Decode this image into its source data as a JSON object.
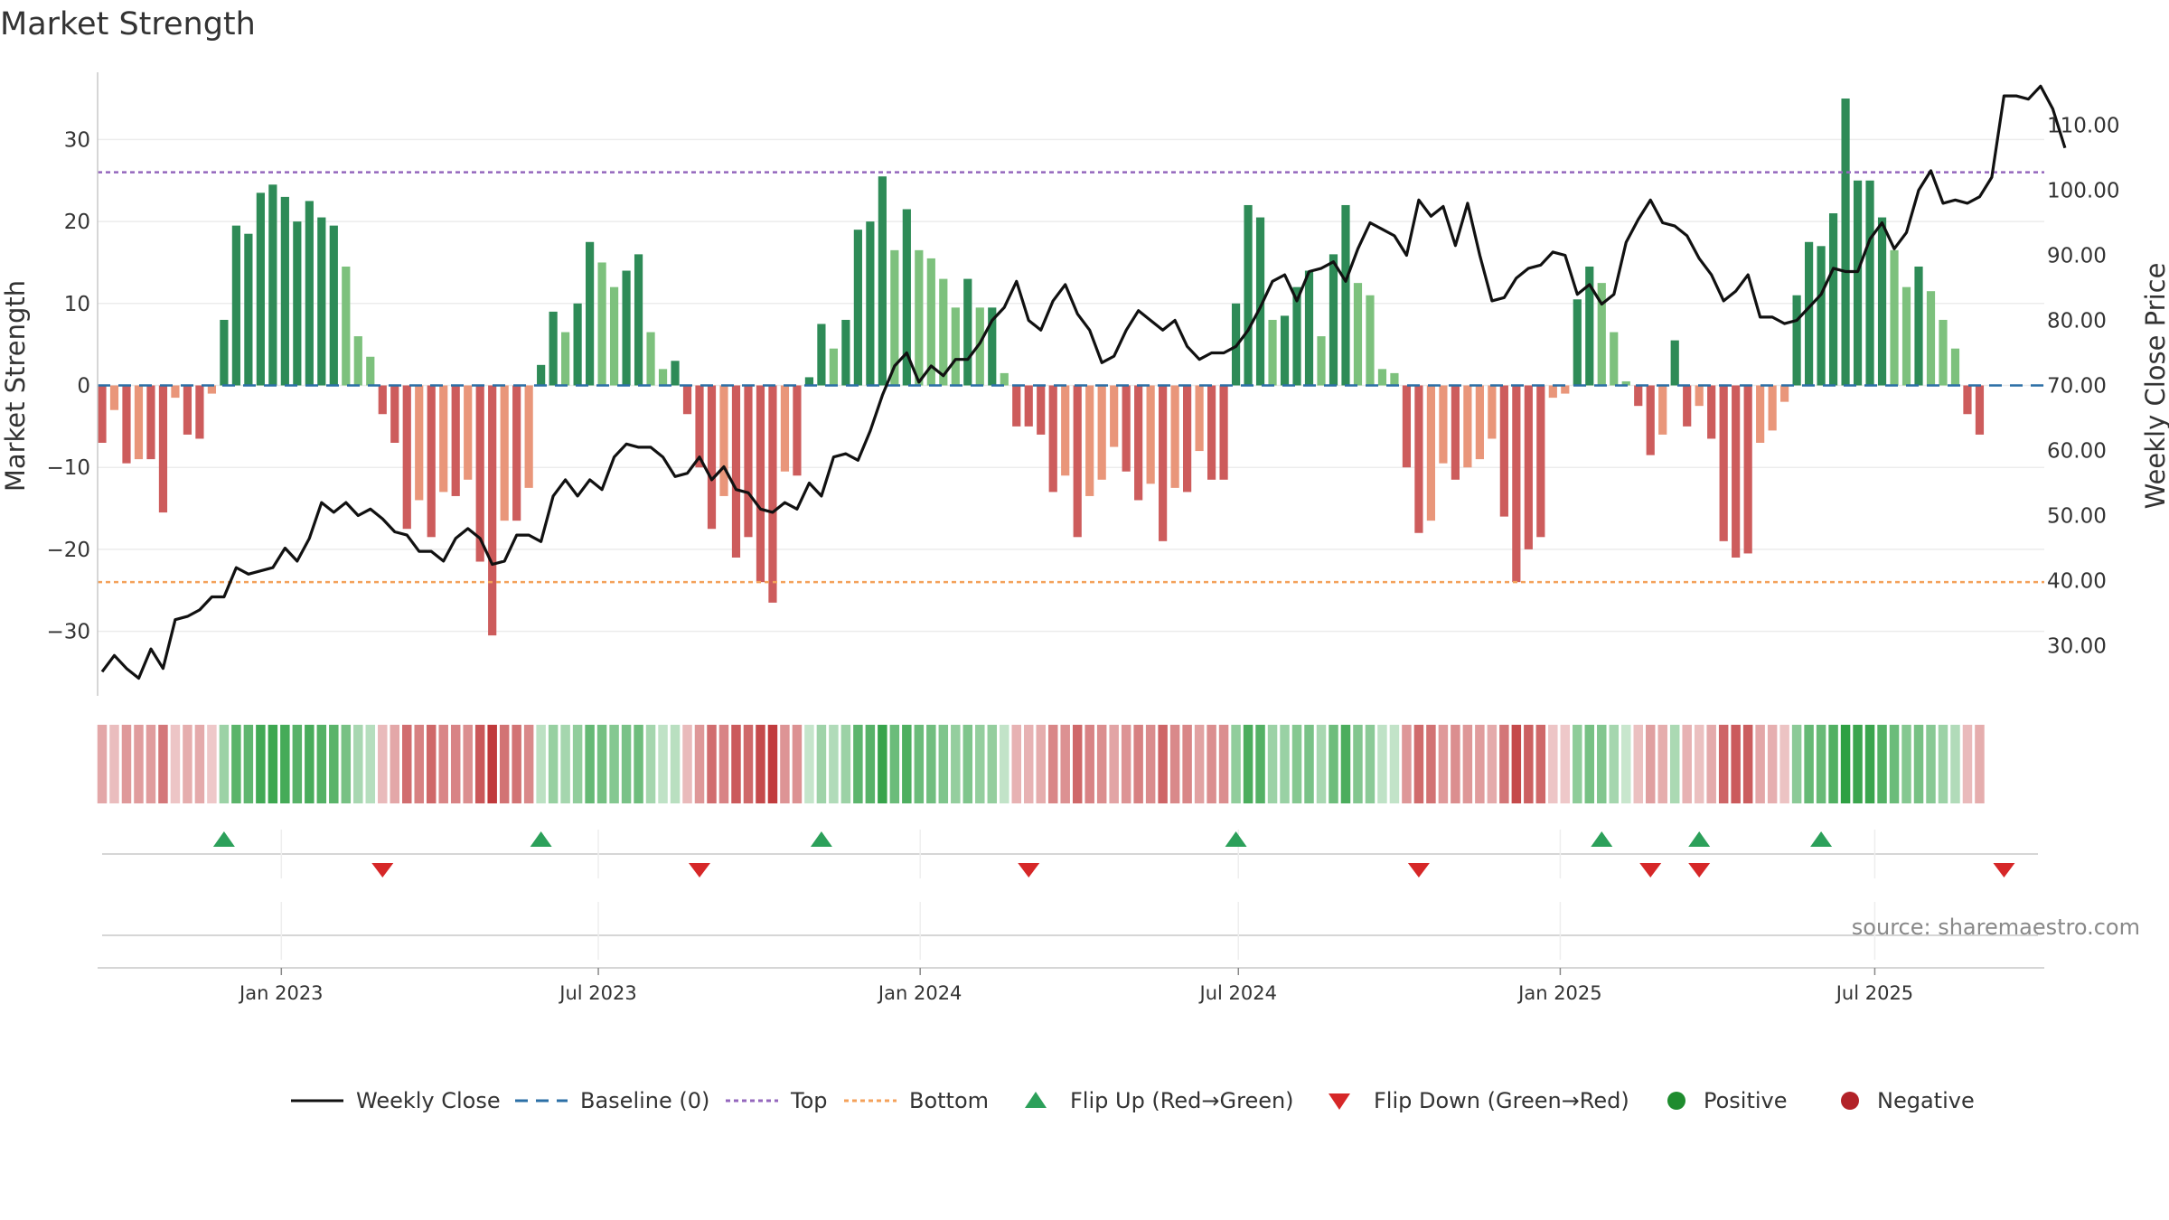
{
  "chart_data": {
    "type": "bar",
    "title": "Market Strength",
    "ylabel": "Market Strength",
    "y2label": "Weekly Close Price",
    "ylim": [
      -37.5,
      38
    ],
    "y2lim": [
      20.6,
      120.3
    ],
    "yticks": [
      30,
      20,
      10,
      0,
      -10,
      -20,
      -30
    ],
    "yticklabels": [
      "30",
      "20",
      "10",
      "0",
      "−10",
      "−20",
      "−30"
    ],
    "y2ticks": [
      110,
      100,
      90,
      80,
      70,
      60,
      50,
      40,
      30
    ],
    "y2ticklabels": [
      "110.00",
      "100.00",
      "90.00",
      "80.00",
      "70.00",
      "60.00",
      "50.00",
      "40.00",
      "30.00"
    ],
    "top_level": 26,
    "bottom_level": -24,
    "baseline": 0,
    "x_start_week": 0,
    "xticks": [
      {
        "label": "Jan 2023",
        "week": 14.7
      },
      {
        "label": "Jul 2023",
        "week": 40.7
      },
      {
        "label": "Jan 2024",
        "week": 67.1
      },
      {
        "label": "Jul 2024",
        "week": 93.2
      },
      {
        "label": "Jan 2025",
        "week": 119.6
      },
      {
        "label": "Jul 2025",
        "week": 145.4
      }
    ],
    "strength": [
      -7,
      -3,
      -9.5,
      -9,
      -9,
      -15.5,
      -1.5,
      -6,
      -6.5,
      -1,
      8,
      19.5,
      18.5,
      23.5,
      24.5,
      23,
      20,
      22.5,
      20.5,
      19.5,
      14.5,
      6,
      3.5,
      -3.5,
      -7,
      -17.5,
      -14,
      -18.5,
      -13,
      -13.5,
      -11.5,
      -21.5,
      -30.5,
      -16.5,
      -16.5,
      -12.5,
      2.5,
      9,
      6.5,
      10,
      17.5,
      15,
      12,
      14,
      16,
      6.5,
      2,
      3,
      -3.5,
      -10,
      -17.5,
      -13.5,
      -21,
      -18.5,
      -24,
      -26.5,
      -10.5,
      -11,
      1,
      7.5,
      4.5,
      8,
      19,
      20,
      25.5,
      16.5,
      21.5,
      16.5,
      15.5,
      13,
      9.5,
      13,
      9.5,
      9.5,
      1.5,
      -5,
      -5,
      -6,
      -13,
      -11,
      -18.5,
      -13.5,
      -11.5,
      -7.5,
      -10.5,
      -14,
      -12,
      -19,
      -12.5,
      -13,
      -8,
      -11.5,
      -11.5,
      10,
      22,
      20.5,
      8,
      8.5,
      12,
      14,
      6,
      16,
      22,
      12.5,
      11,
      2,
      1.5,
      -10,
      -18,
      -16.5,
      -9.5,
      -11.5,
      -10,
      -9,
      -6.5,
      -16,
      -24,
      -20,
      -18.5,
      -1.5,
      -1,
      10.5,
      14.5,
      12.5,
      6.5,
      0.5,
      -2.5,
      -8.5,
      -6,
      5.5,
      -5,
      -2.5,
      -6.5,
      -19,
      -21,
      -20.5,
      -7,
      -5.5,
      -2,
      11,
      17.5,
      17,
      21,
      35,
      25,
      25,
      20.5,
      16.5,
      12,
      14.5,
      11.5,
      8,
      4.5,
      -3.5,
      -6
    ],
    "price": [
      26,
      28.5,
      26.5,
      25,
      29.5,
      26.5,
      34,
      34.5,
      35.5,
      37.5,
      37.5,
      42,
      41,
      41.5,
      42,
      45,
      43,
      46.5,
      52,
      50.5,
      52,
      50,
      51,
      49.5,
      47.5,
      47,
      44.5,
      44.5,
      43,
      46.5,
      48,
      46.5,
      42.5,
      43,
      47,
      47,
      46,
      53,
      55.5,
      53,
      55.5,
      54,
      59,
      61,
      60.5,
      60.5,
      59,
      56,
      56.5,
      59,
      55.5,
      57.5,
      54,
      53.5,
      51,
      50.5,
      52,
      51,
      55,
      53,
      59,
      59.5,
      58.5,
      63,
      68.5,
      73,
      75,
      70.5,
      73,
      71.5,
      74,
      74,
      76.5,
      80,
      82,
      86,
      80,
      78.5,
      83,
      85.5,
      81,
      78.5,
      73.5,
      74.5,
      78.5,
      81.5,
      80,
      78.5,
      80,
      76,
      74,
      75,
      75,
      76,
      78.5,
      82,
      86,
      87,
      83,
      87.5,
      88,
      89,
      86,
      91,
      95,
      94,
      93,
      90,
      98.5,
      96,
      97.5,
      91.5,
      98,
      90,
      83,
      83.5,
      86.5,
      88,
      88.5,
      90.5,
      90,
      84,
      85.5,
      82.5,
      84,
      92,
      95.5,
      98.5,
      95,
      94.5,
      93,
      89.5,
      87,
      83,
      84.5,
      87,
      80.5,
      80.5,
      79.5,
      80,
      82,
      84,
      88,
      87.5,
      87.5,
      92.5,
      95,
      91,
      93.5,
      100,
      103,
      98,
      98.5,
      98,
      99,
      102,
      114.5,
      114.5,
      114,
      116,
      112.5,
      106.5
    ],
    "flip_up_weeks": [
      10,
      36,
      59,
      93,
      123,
      131,
      141
    ],
    "flip_down_weeks": [
      23,
      49,
      76,
      108,
      127,
      131,
      156
    ],
    "legend": [
      {
        "label": "Weekly Close",
        "kind": "line",
        "color": "#111111"
      },
      {
        "label": "Baseline (0)",
        "kind": "dash",
        "color": "#2b6fa6"
      },
      {
        "label": "Top",
        "kind": "dot",
        "color": "#9467bd"
      },
      {
        "label": "Bottom",
        "kind": "dot",
        "color": "#f4a15a"
      },
      {
        "label": "Flip Up (Red→Green)",
        "kind": "tri-up",
        "color": "#2ca05a"
      },
      {
        "label": "Flip Down (Green→Red)",
        "kind": "tri-down",
        "color": "#d62728"
      },
      {
        "label": "Positive",
        "kind": "circle",
        "color": "#1e8c2e"
      },
      {
        "label": "Negative",
        "kind": "circle",
        "color": "#b22228"
      }
    ],
    "source": "source: sharemaestro.com"
  },
  "colors": {
    "pos_dark": "#2e8b57",
    "pos_light": "#7dc17d",
    "neg_dark": "#cd5c5c",
    "neg_light": "#e9967a",
    "grid": "#ececec",
    "axis": "#c8c8c8"
  }
}
